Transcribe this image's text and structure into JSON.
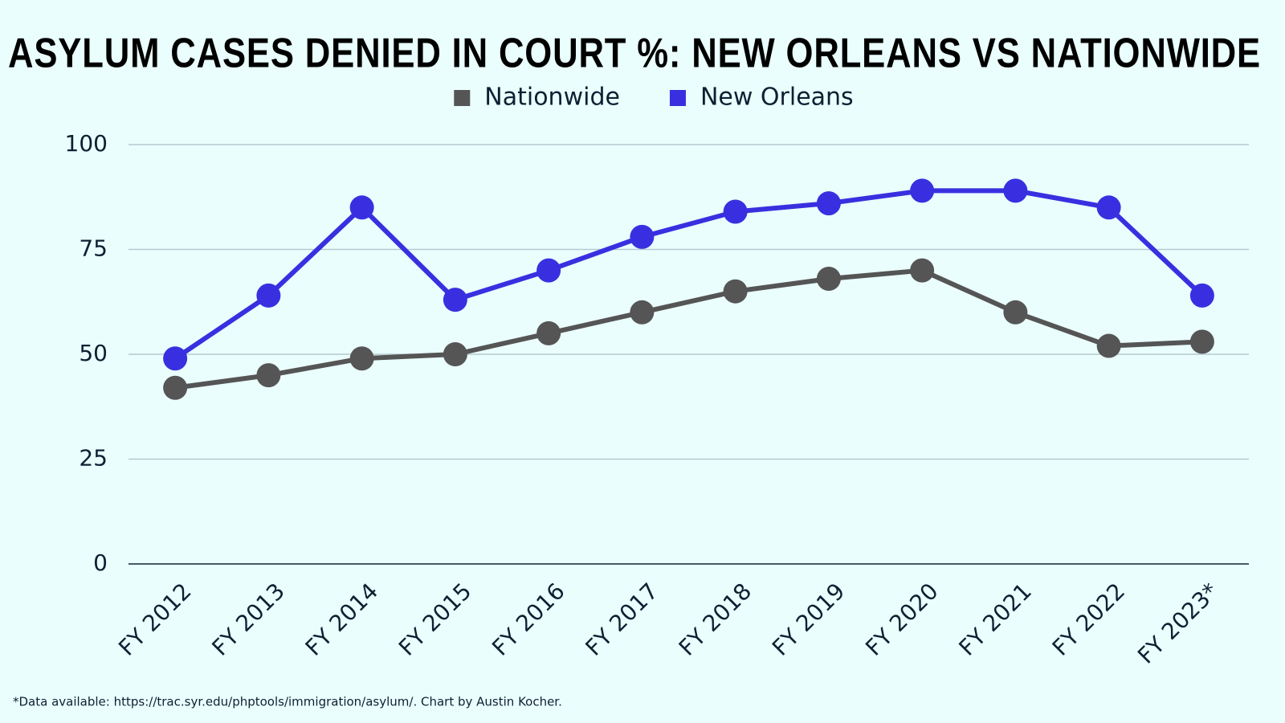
{
  "chart_data": {
    "type": "line",
    "title": "ASYLUM CASES DENIED IN COURT %: NEW ORLEANS VS NATIONWIDE",
    "categories": [
      "FY 2012",
      "FY 2013",
      "FY 2014",
      "FY 2015",
      "FY 2016",
      "FY 2017",
      "FY 2018",
      "FY 2019",
      "FY 2020",
      "FY 2021",
      "FY 2022",
      "FY 2023*"
    ],
    "series": [
      {
        "name": "Nationwide",
        "color": "#555555",
        "values": [
          42,
          45,
          49,
          50,
          55,
          60,
          65,
          68,
          70,
          60,
          52,
          53
        ]
      },
      {
        "name": "New Orleans",
        "color": "#3a2fe0",
        "values": [
          49,
          64,
          85,
          63,
          70,
          78,
          84,
          86,
          89,
          89,
          85,
          64
        ]
      }
    ],
    "ylim": [
      0,
      100
    ],
    "yticks": [
      0,
      25,
      50,
      75,
      100
    ],
    "grid": true,
    "legend": "top",
    "footnote": "*Data available: https://trac.syr.edu/phptools/immigration/asylum/. Chart by Austin Kocher."
  }
}
